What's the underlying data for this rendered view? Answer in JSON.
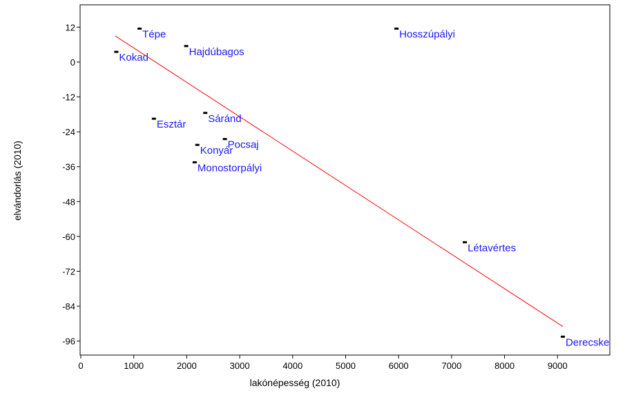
{
  "chart_data": {
    "type": "scatter",
    "xlabel": "lakónépesség (2010)",
    "ylabel": "elvándorlás (2010)",
    "xlim": [
      0,
      10000
    ],
    "ylim": [
      -100,
      20
    ],
    "xticks": [
      0,
      1000,
      2000,
      3000,
      4000,
      5000,
      6000,
      7000,
      8000,
      9000
    ],
    "yticks": [
      12,
      0,
      -12,
      -24,
      -36,
      -48,
      -60,
      -72,
      -84,
      -96
    ],
    "grid": false,
    "points": [
      {
        "label": "Tépe",
        "x": 1110,
        "y": 11.5
      },
      {
        "label": "Hajdúbagos",
        "x": 1990,
        "y": 5.5
      },
      {
        "label": "Hosszúpályi",
        "x": 5960,
        "y": 11.5
      },
      {
        "label": "Kokad",
        "x": 670,
        "y": 3.5
      },
      {
        "label": "Sáránd",
        "x": 2350,
        "y": -17.5
      },
      {
        "label": "Esztár",
        "x": 1380,
        "y": -19.5
      },
      {
        "label": "Pocsaj",
        "x": 2720,
        "y": -26.5
      },
      {
        "label": "Konyár",
        "x": 2200,
        "y": -28.5
      },
      {
        "label": "Monostorpályi",
        "x": 2150,
        "y": -34.5
      },
      {
        "label": "Létavértes",
        "x": 7250,
        "y": -62
      },
      {
        "label": "Derecske",
        "x": 9100,
        "y": -94.5
      }
    ],
    "trendline": {
      "x": [
        650,
        9100
      ],
      "y": [
        9,
        -91
      ]
    },
    "colors": {
      "points": "#000000",
      "labels": "#1a1aff",
      "trendline": "#ff0000",
      "axes": "#000000"
    }
  }
}
